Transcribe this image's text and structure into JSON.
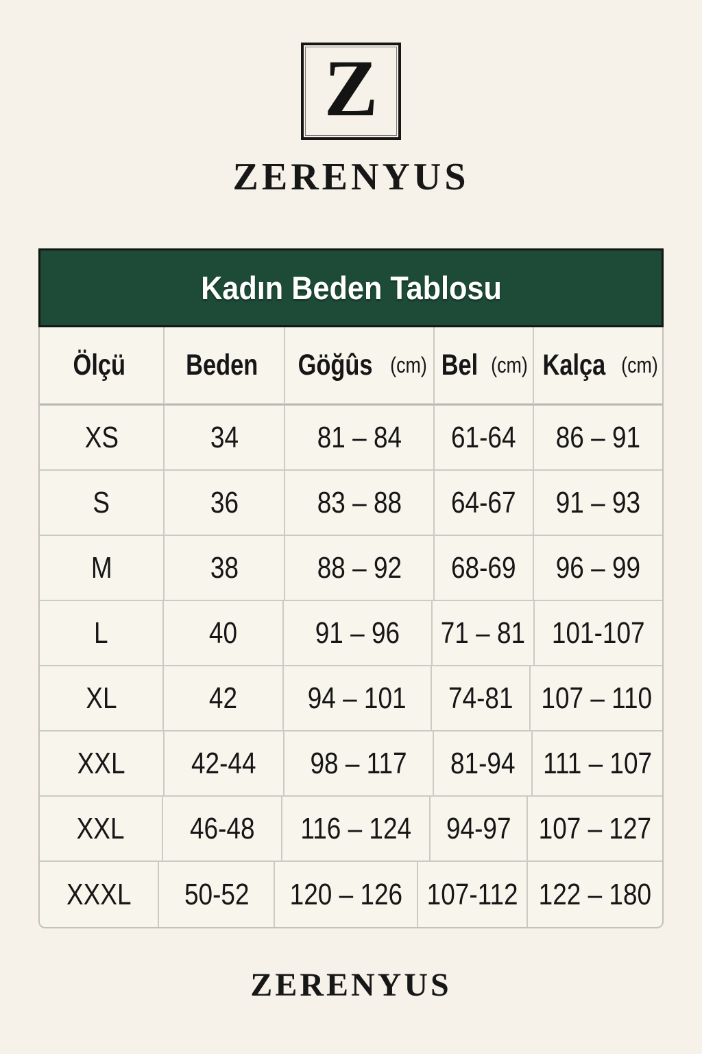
{
  "brand": {
    "logo_letter": "Z",
    "wordmark": "ZERENYUS",
    "footer_wordmark": "ZERENYUS"
  },
  "size_chart": {
    "title": "Kadın Beden Tablosu",
    "columns": [
      {
        "label": "Ölçü",
        "unit": ""
      },
      {
        "label": "Beden",
        "unit": ""
      },
      {
        "label": "Göğûs",
        "unit": "(cm)"
      },
      {
        "label": "Bel",
        "unit": "(cm)"
      },
      {
        "label": "Kalça",
        "unit": "(cm)"
      }
    ],
    "rows": [
      {
        "olcu": "XS",
        "beden": "34",
        "gogus": "81 – 84",
        "bel": "61-64",
        "kalca": "86 – 91"
      },
      {
        "olcu": "S",
        "beden": "36",
        "gogus": "83 – 88",
        "bel": "64-67",
        "kalca": "91 – 93"
      },
      {
        "olcu": "M",
        "beden": "38",
        "gogus": "88 – 92",
        "bel": "68-69",
        "kalca": "96 – 99"
      },
      {
        "olcu": "L",
        "beden": "40",
        "gogus": "91 – 96",
        "bel": "71 – 81",
        "kalca": "101-107"
      },
      {
        "olcu": "XL",
        "beden": "42",
        "gogus": "94 – 101",
        "bel": "74-81",
        "kalca": "107 – 110"
      },
      {
        "olcu": "XXL",
        "beden": "42-44",
        "gogus": "98 – 117",
        "bel": "81-94",
        "kalca": "111 – 107"
      },
      {
        "olcu": "XXL",
        "beden": "46-48",
        "gogus": "116 – 124",
        "bel": "94-97",
        "kalca": "107 – 127"
      },
      {
        "olcu": "XXXL",
        "beden": "50-52",
        "gogus": "120 – 126",
        "bel": "107-112",
        "kalca": "122 – 180"
      }
    ]
  },
  "colors": {
    "page_background": "#f6f2e9",
    "header_green": "#1d4b37",
    "header_text": "#ffffff",
    "table_border": "#c2c2bb",
    "text": "#161616"
  }
}
